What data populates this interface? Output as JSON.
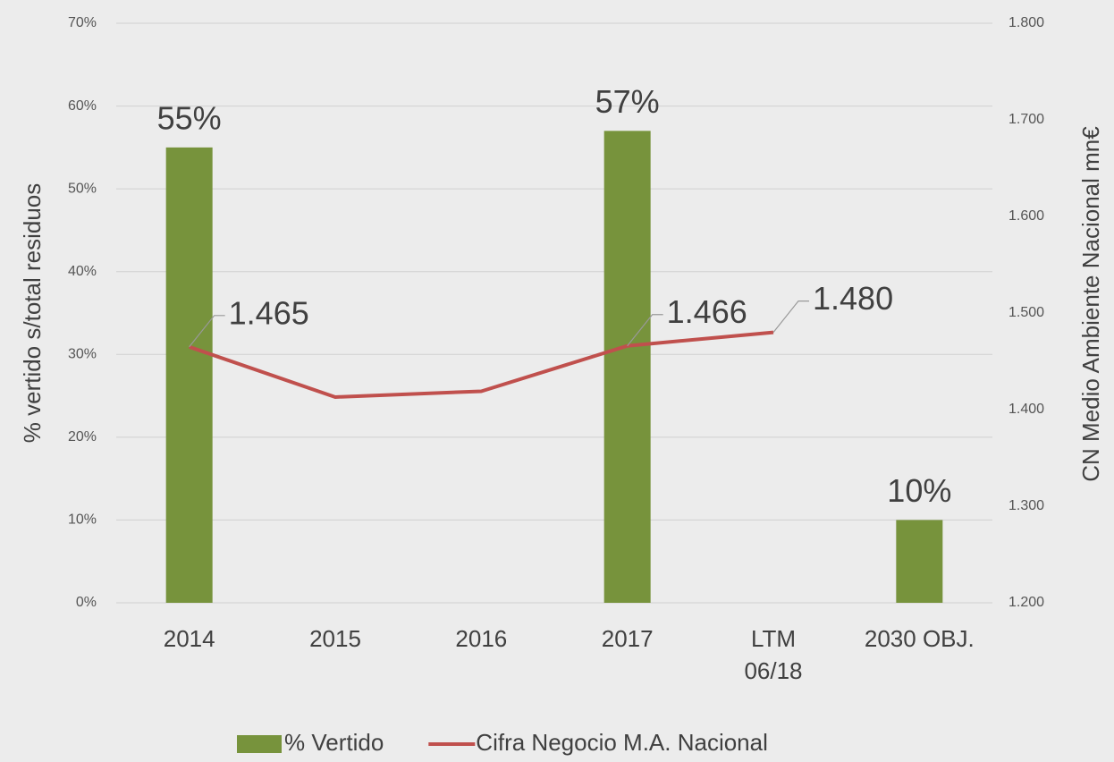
{
  "chart_data": {
    "type": "bar",
    "categories": [
      "2014",
      "2015",
      "2016",
      "2017",
      "LTM\n06/18",
      "2030 OBJ."
    ],
    "ylabel": "% vertido s/total residuos",
    "y2label": "CN Medio Ambiente Nacional mn€",
    "ylim": [
      0,
      70
    ],
    "yticks": [
      {
        "value": 0,
        "label": "0%"
      },
      {
        "value": 10,
        "label": "10%"
      },
      {
        "value": 20,
        "label": "20%"
      },
      {
        "value": 30,
        "label": "30%"
      },
      {
        "value": 40,
        "label": "40%"
      },
      {
        "value": 50,
        "label": "50%"
      },
      {
        "value": 60,
        "label": "60%"
      },
      {
        "value": 70,
        "label": "70%"
      }
    ],
    "y2lim": [
      1200,
      1800
    ],
    "y2ticks": [
      {
        "value": 1200,
        "label": "1.200"
      },
      {
        "value": 1300,
        "label": "1.300"
      },
      {
        "value": 1400,
        "label": "1.400"
      },
      {
        "value": 1500,
        "label": "1.500"
      },
      {
        "value": 1600,
        "label": "1.600"
      },
      {
        "value": 1700,
        "label": "1.700"
      },
      {
        "value": 1800,
        "label": "1.800"
      }
    ],
    "grid": true,
    "legend": "bottom",
    "series": [
      {
        "name": "% Vertido",
        "type": "bar",
        "color": "#77933c",
        "values": [
          55,
          null,
          null,
          57,
          null,
          10
        ],
        "value_labels": [
          "55%",
          null,
          null,
          "57%",
          null,
          "10%"
        ]
      },
      {
        "name": "Cifra Negocio M.A. Nacional",
        "type": "line",
        "axis": "y2",
        "color": "#c0504d",
        "values": [
          1465,
          1413,
          1419,
          1466,
          1480,
          null
        ],
        "value_labels": [
          "1.465",
          null,
          null,
          "1.466",
          "1.480",
          null
        ]
      }
    ]
  }
}
